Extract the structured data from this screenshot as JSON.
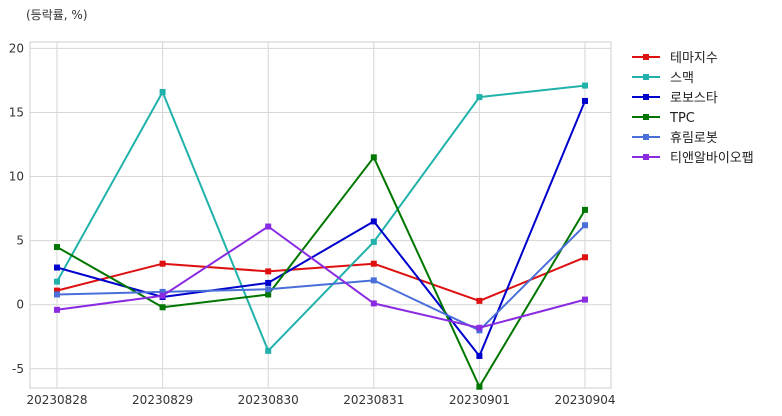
{
  "chart_data": {
    "type": "line",
    "unit_label": "(등락률, %)",
    "categories": [
      "20230828",
      "20230829",
      "20230830",
      "20230831",
      "20230901",
      "20230904"
    ],
    "ylim": [
      -6.5,
      20.5
    ],
    "yticks": [
      -5,
      0,
      5,
      10,
      15,
      20
    ],
    "grid": true,
    "legend_position": "right",
    "series": [
      {
        "name": "테마지수",
        "color": "#dd1111",
        "values": [
          1.1,
          3.2,
          2.6,
          3.2,
          0.3,
          3.7
        ]
      },
      {
        "name": "스맥",
        "color": "#20b2aa",
        "values": [
          1.8,
          16.6,
          -3.6,
          4.9,
          16.2,
          17.1
        ]
      },
      {
        "name": "로보스타",
        "color": "#0000cc",
        "values": [
          2.9,
          0.6,
          1.7,
          6.5,
          -4.0,
          15.9
        ]
      },
      {
        "name": "TPC",
        "color": "#007700",
        "values": [
          4.5,
          -0.2,
          0.8,
          11.5,
          -6.4,
          7.4
        ]
      },
      {
        "name": "휴림로봇",
        "color": "#4a6fd8",
        "values": [
          0.8,
          1.0,
          1.2,
          1.9,
          -2.0,
          6.2
        ]
      },
      {
        "name": "티앤알바이오팹",
        "color": "#8a2be2",
        "values": [
          -0.4,
          0.7,
          6.1,
          0.1,
          -1.8,
          0.4
        ]
      }
    ]
  }
}
